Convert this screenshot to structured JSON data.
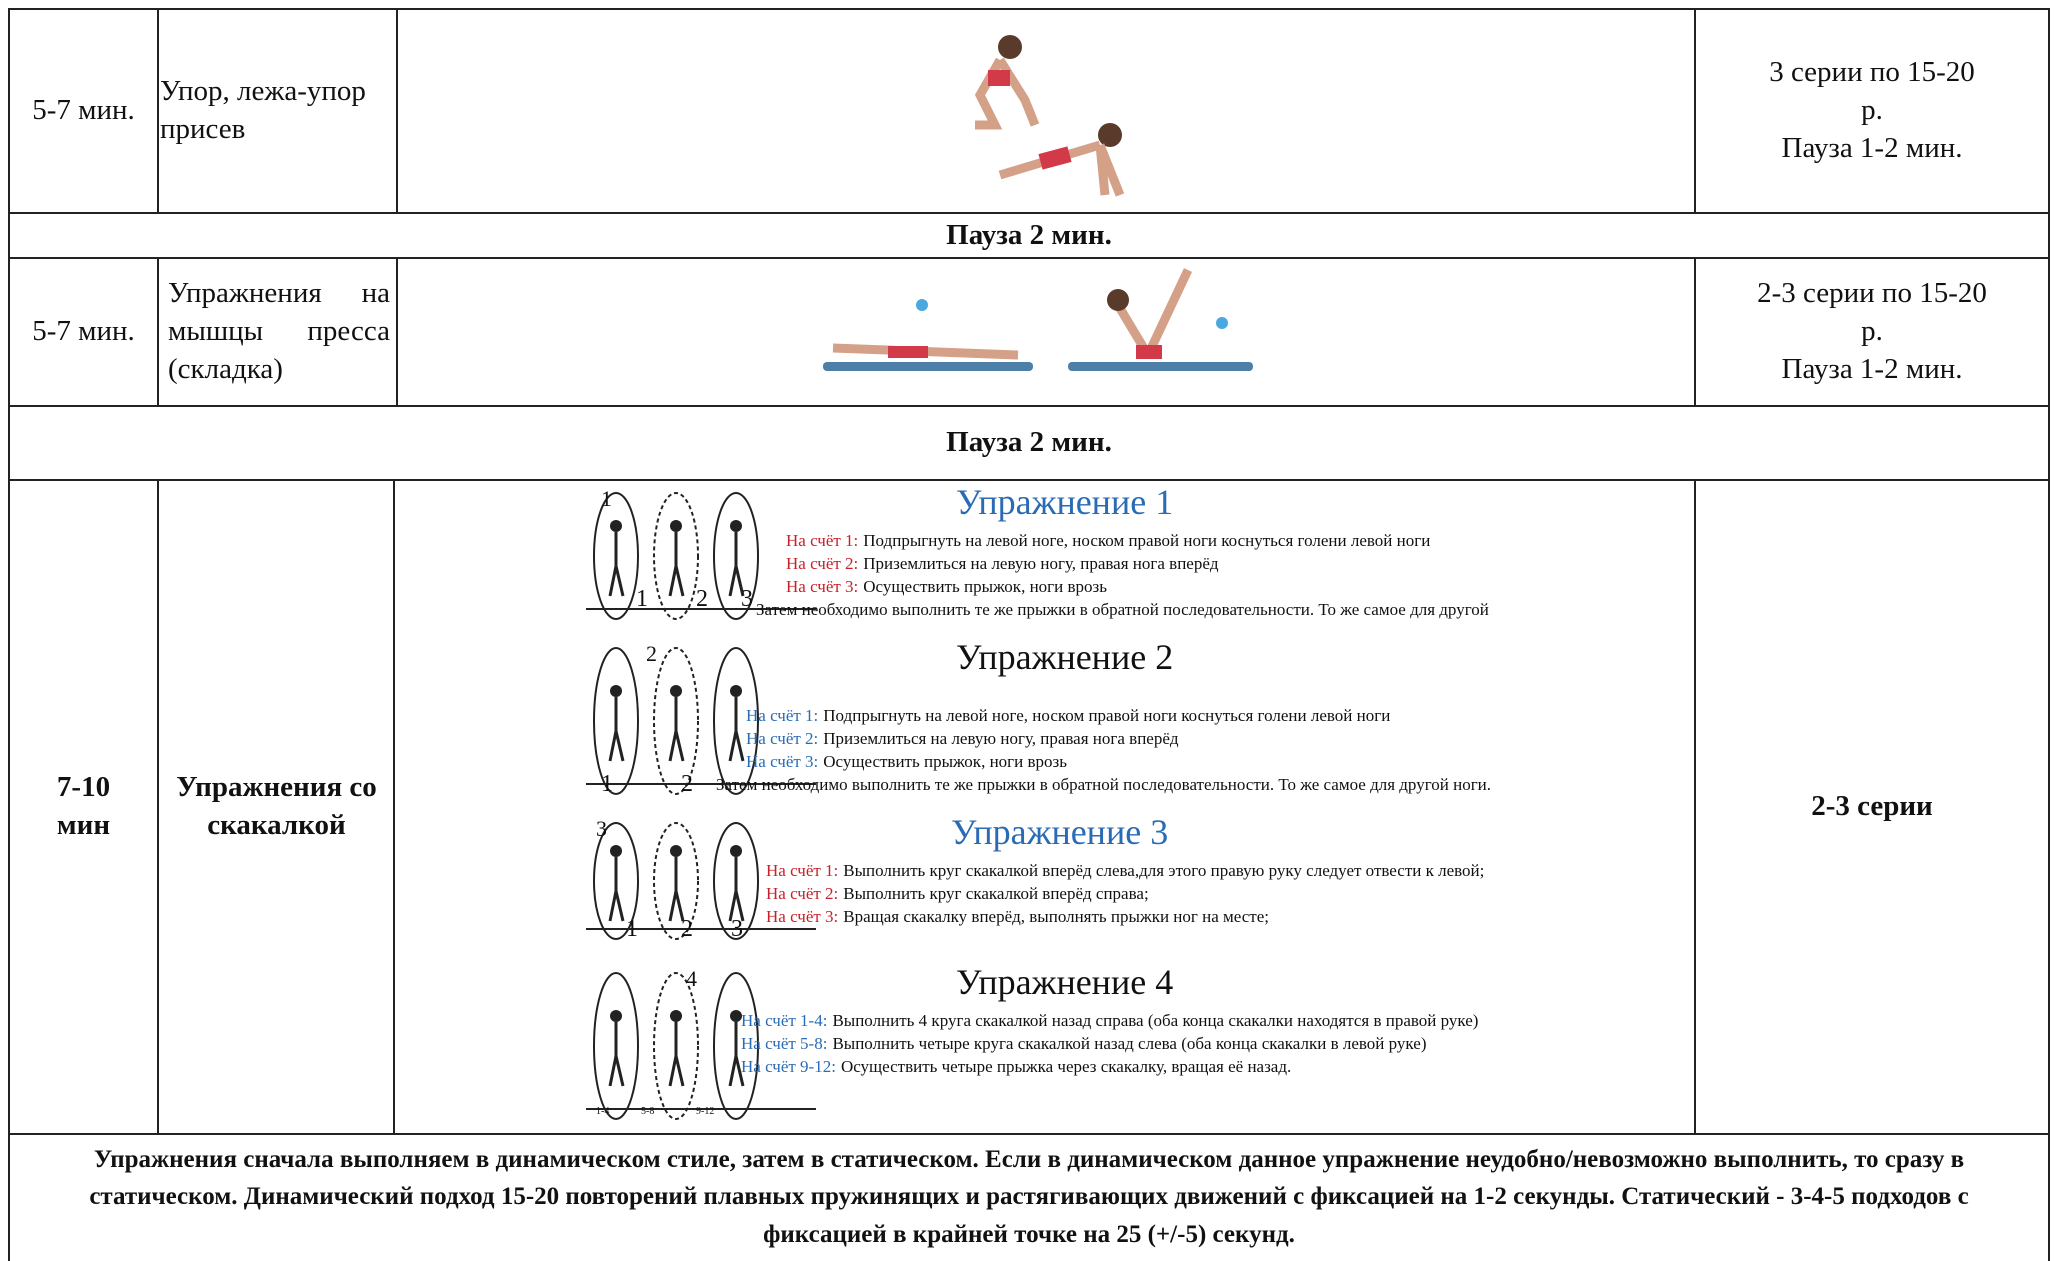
{
  "table": {
    "rows": [
      {
        "time": [
          "5-7 мин."
        ],
        "exercise": "Упор, лежа-упор присев",
        "sets": [
          "3 серии по 15-20",
          "р.",
          "Пауза 1-2 мин."
        ]
      },
      {
        "pause": "Пауза 2 мин."
      },
      {
        "time": [
          "5-7 мин."
        ],
        "exercise": "Упражнения на мышцы пресса (складка)",
        "sets": [
          "2-3 серии по 15-20",
          "р.",
          "Пауза 1-2 мин."
        ]
      },
      {
        "pause": "Пауза 2 мин."
      },
      {
        "time": [
          "7-10",
          "мин"
        ],
        "exercise": "Упражнения со скакалкой",
        "sets": [
          "2-3 серии"
        ],
        "exercises": [
          {
            "title": "Упражнение 1",
            "figures": [
              "1",
              "1",
              "2",
              "3"
            ],
            "steps": [
              {
                "label": "На счёт 1:",
                "text": "Подпрыгнуть на левой ноге, носком правой ноги коснуться голени левой ноги"
              },
              {
                "label": "На счёт 2:",
                "text": "Приземлиться на левую ногу, правая нога вперёд"
              },
              {
                "label": "На счёт 3:",
                "text": "Осуществить прыжок, ноги врозь"
              }
            ],
            "note": "Затем необходимо выполнить те же прыжки в обратной последовательности. То же самое для другой"
          },
          {
            "title": "Упражнение 2",
            "figures": [
              "2",
              "1",
              "2"
            ],
            "steps": [
              {
                "label": "На счёт 1:",
                "text": "Подпрыгнуть на левой ноге, носком правой ноги коснуться голени левой ноги"
              },
              {
                "label": "На счёт 2:",
                "text": "Приземлиться на левую ногу, правая нога вперёд"
              },
              {
                "label": "На счёт 3:",
                "text": "Осуществить прыжок, ноги врозь"
              }
            ],
            "note": "Затем необходимо выполнить те же прыжки в обратной последовательности. То же самое для другой ноги."
          },
          {
            "title": "Упражнение 3",
            "figures": [
              "3",
              "1",
              "2",
              "3"
            ],
            "steps": [
              {
                "label": "На счёт 1:",
                "text": "Выполнить круг скакалкой вперёд слева,для этого правую руку следует отвести к левой;"
              },
              {
                "label": "На счёт 2:",
                "text": "Выполнить круг скакалкой вперёд справа;"
              },
              {
                "label": "На счёт 3:",
                "text": "Вращая скакалку вперёд, выполнять прыжки ног на месте;"
              }
            ]
          },
          {
            "title": "Упражнение 4",
            "figures": [
              "4",
              "1-4",
              "5-8",
              "9-12"
            ],
            "steps": [
              {
                "label": "На счёт 1-4:",
                "text": "Выполнить 4 круга скакалкой назад справа (оба конца скакалки находятся в правой руке)"
              },
              {
                "label": "На счёт 5-8:",
                "text": "Выполнить четыре круга скакалкой назад слева (оба конца скакалки в левой руке)"
              },
              {
                "label": "На счёт 9-12:",
                "text": "Осуществить четыре прыжка через скакалку, вращая её назад."
              }
            ]
          }
        ]
      }
    ],
    "footer": "Упражнения сначала выполняем в динамическом стиле, затем в статическом. Если в динамическом данное упражнение неудобно/невозможно выполнить, то сразу в статическом. Динамический подход 15-20 повторений плавных пружинящих и растягивающих движений с фиксацией на 1-2 секунды. Статический - 3-4-5 подходов с фиксацией в крайней точке на 25 (+/-5) секунд."
  }
}
